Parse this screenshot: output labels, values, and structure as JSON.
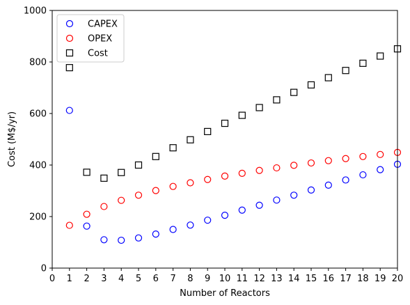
{
  "chart_data": {
    "type": "scatter",
    "xlabel": "Number of Reactors",
    "ylabel": "Cost (M$/yr)",
    "xlim": [
      0,
      20
    ],
    "ylim": [
      0,
      1000
    ],
    "xticks": [
      "0",
      "1",
      "2",
      "3",
      "4",
      "5",
      "6",
      "7",
      "8",
      "9",
      "10",
      "11",
      "12",
      "13",
      "14",
      "15",
      "16",
      "17",
      "18",
      "19",
      "20"
    ],
    "yticks": [
      "0",
      "200",
      "400",
      "600",
      "800",
      "1000"
    ],
    "grid": false,
    "legend_position": "top-left",
    "x": [
      1,
      2,
      3,
      4,
      5,
      6,
      7,
      8,
      9,
      10,
      11,
      12,
      13,
      14,
      15,
      16,
      17,
      18,
      19,
      20
    ],
    "series": [
      {
        "name": "CAPEX",
        "marker": "circle",
        "color": "#0000ff",
        "values": [
          612,
          163,
          110,
          108,
          117,
          132,
          150,
          167,
          186,
          205,
          225,
          244,
          264,
          283,
          303,
          322,
          342,
          362,
          382,
          403
        ]
      },
      {
        "name": "OPEX",
        "marker": "circle",
        "color": "#ff0000",
        "values": [
          166,
          209,
          239,
          263,
          283,
          301,
          317,
          331,
          344,
          357,
          368,
          379,
          389,
          399,
          408,
          417,
          425,
          433,
          441,
          449
        ]
      },
      {
        "name": "Cost",
        "marker": "square",
        "color": "#000000",
        "values": [
          778,
          372,
          349,
          371,
          400,
          433,
          467,
          498,
          530,
          562,
          593,
          623,
          653,
          682,
          711,
          739,
          767,
          795,
          823,
          851
        ]
      }
    ]
  }
}
